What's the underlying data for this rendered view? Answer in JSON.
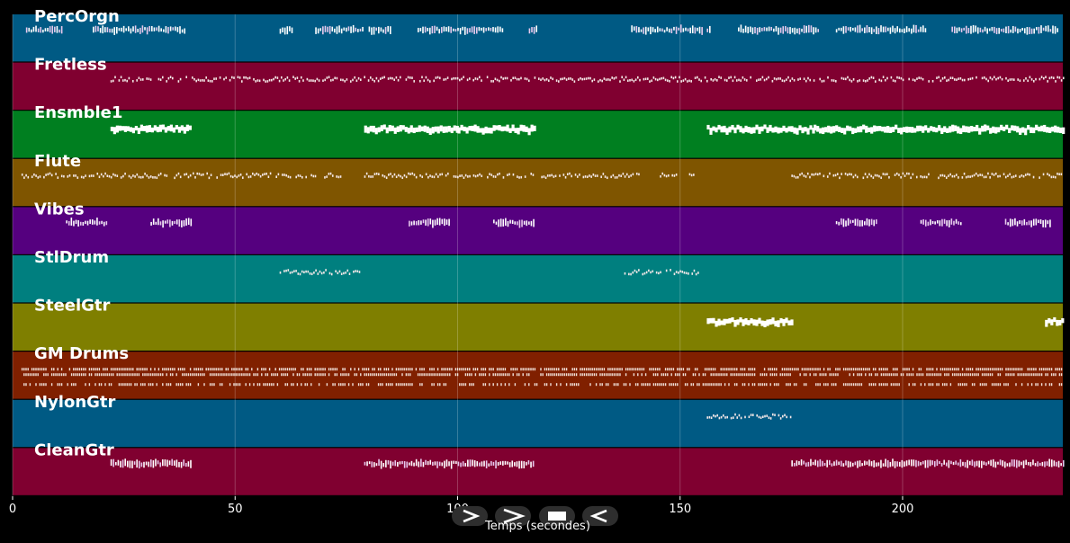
{
  "xaxis": {
    "label": "Temps (secondes)",
    "range": [
      0,
      236
    ],
    "ticks": [
      0,
      50,
      100,
      150,
      200
    ]
  },
  "tracks": [
    {
      "name": "PercOrgn",
      "color": "#005a84",
      "style": "clusters",
      "segments": [
        [
          3,
          11
        ],
        [
          18,
          39
        ],
        [
          60,
          63
        ],
        [
          68,
          79
        ],
        [
          80,
          85
        ],
        [
          91,
          110
        ],
        [
          116,
          118
        ],
        [
          139,
          155
        ],
        [
          156,
          157
        ],
        [
          163,
          181
        ],
        [
          185,
          205
        ],
        [
          211,
          235
        ]
      ]
    },
    {
      "name": "Fretless",
      "color": "#800030",
      "style": "dots",
      "segments": [
        [
          22,
          236
        ]
      ]
    },
    {
      "name": "Ensmble1",
      "color": "#007f20",
      "style": "bar",
      "segments": [
        [
          22,
          40
        ],
        [
          79,
          100
        ],
        [
          100,
          117
        ],
        [
          156,
          180
        ],
        [
          180,
          236
        ]
      ]
    },
    {
      "name": "Flute",
      "color": "#7f5500",
      "style": "dots",
      "segments": [
        [
          2,
          40
        ],
        [
          40,
          66
        ],
        [
          67,
          69
        ],
        [
          70,
          74
        ],
        [
          79,
          117
        ],
        [
          117,
          141
        ],
        [
          145,
          150
        ],
        [
          152,
          153
        ],
        [
          175,
          236
        ]
      ]
    },
    {
      "name": "Vibes",
      "color": "#55007f",
      "style": "clusters",
      "segments": [
        [
          12,
          21
        ],
        [
          31,
          40
        ],
        [
          89,
          98
        ],
        [
          108,
          117
        ],
        [
          185,
          194
        ],
        [
          204,
          213
        ],
        [
          223,
          233
        ]
      ]
    },
    {
      "name": "StlDrum",
      "color": "#007f7f",
      "style": "dots",
      "segments": [
        [
          60,
          78
        ],
        [
          137,
          155
        ]
      ]
    },
    {
      "name": "SteelGtr",
      "color": "#7f7f00",
      "style": "bar",
      "segments": [
        [
          156,
          175
        ],
        [
          232,
          236
        ]
      ]
    },
    {
      "name": "GM Drums",
      "color": "#802000",
      "style": "drums",
      "segments": [
        [
          2,
          236
        ]
      ]
    },
    {
      "name": "NylonGtr",
      "color": "#005a84",
      "style": "dots",
      "segments": [
        [
          156,
          175
        ]
      ]
    },
    {
      "name": "CleanGtr",
      "color": "#800030",
      "style": "clusters",
      "segments": [
        [
          22,
          40
        ],
        [
          79,
          117
        ],
        [
          175,
          236
        ]
      ]
    }
  ],
  "controls": [
    {
      "name": "play-button",
      "glyph": "play"
    },
    {
      "name": "next-button",
      "glyph": "next"
    },
    {
      "name": "stop-button",
      "glyph": "stop"
    },
    {
      "name": "back-button",
      "glyph": "back"
    }
  ]
}
